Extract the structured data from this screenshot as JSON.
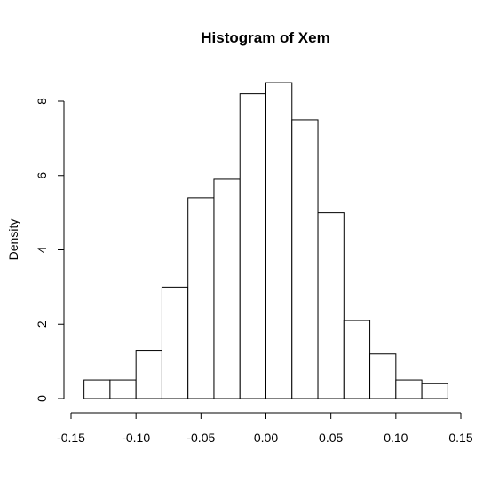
{
  "chart_data": {
    "type": "bar",
    "title": "Histogram of Xem",
    "xlabel": "",
    "ylabel": "Density",
    "bins": [
      {
        "from": -0.14,
        "to": -0.12,
        "density": 0.5
      },
      {
        "from": -0.12,
        "to": -0.1,
        "density": 0.5
      },
      {
        "from": -0.1,
        "to": -0.08,
        "density": 1.3
      },
      {
        "from": -0.08,
        "to": -0.06,
        "density": 3.0
      },
      {
        "from": -0.06,
        "to": -0.04,
        "density": 5.4
      },
      {
        "from": -0.04,
        "to": -0.02,
        "density": 5.9
      },
      {
        "from": -0.02,
        "to": 0.0,
        "density": 8.2
      },
      {
        "from": 0.0,
        "to": 0.02,
        "density": 8.5
      },
      {
        "from": 0.02,
        "to": 0.04,
        "density": 7.5
      },
      {
        "from": 0.04,
        "to": 0.06,
        "density": 5.0
      },
      {
        "from": 0.06,
        "to": 0.08,
        "density": 2.1
      },
      {
        "from": 0.08,
        "to": 0.1,
        "density": 1.2
      },
      {
        "from": 0.1,
        "to": 0.12,
        "density": 0.5
      },
      {
        "from": 0.12,
        "to": 0.14,
        "density": 0.4
      }
    ],
    "xlim": [
      -0.15,
      0.15
    ],
    "ylim": [
      0,
      8
    ],
    "x_ticks": [
      -0.15,
      -0.1,
      -0.05,
      0.0,
      0.05,
      0.1,
      0.15
    ],
    "x_tick_labels": [
      "-0.15",
      "-0.10",
      "-0.05",
      "0.00",
      "0.05",
      "0.10",
      "0.15"
    ],
    "y_ticks": [
      0,
      2,
      4,
      6,
      8
    ],
    "y_tick_labels": [
      "0",
      "2",
      "4",
      "6",
      "8"
    ],
    "grid": false,
    "bar_fill": "#ffffff",
    "bar_stroke": "#000000"
  }
}
